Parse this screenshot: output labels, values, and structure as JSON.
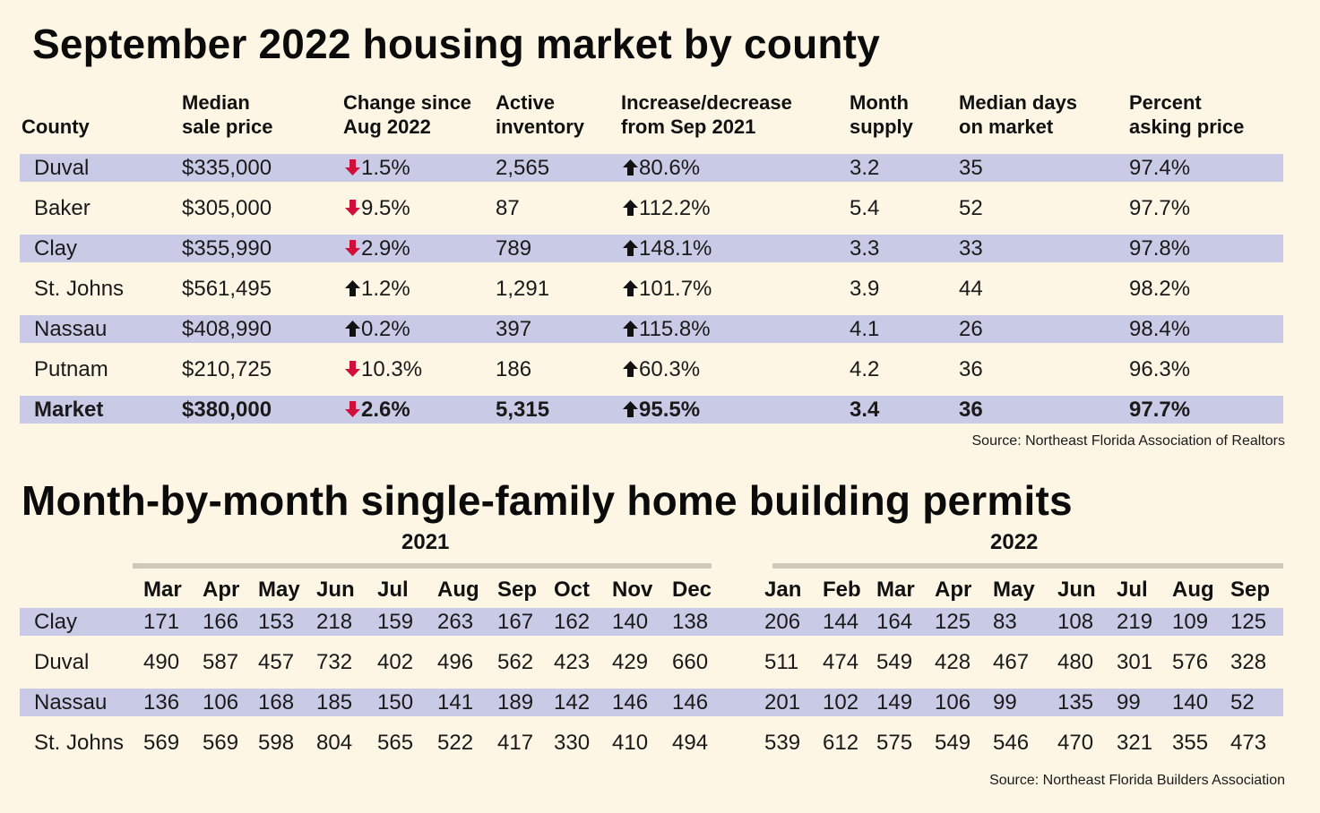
{
  "title1": "September 2022 housing market by county",
  "title2": "Month-by-month single-family home building permits",
  "colors": {
    "background": "#fdf6e4",
    "band": "#c9cbe6",
    "down_arrow": "#d0103a",
    "up_arrow": "#111111"
  },
  "housing": {
    "headers": [
      "County",
      "Median\nsale price",
      "Change since\nAug 2022",
      "Active\ninventory",
      "Increase/decrease\nfrom Sep 2021",
      "Month\nsupply",
      "Median days\non market",
      "Percent\nasking price"
    ],
    "rows": [
      {
        "county": "Duval",
        "price": "$335,000",
        "change_dir": "down",
        "change": "1.5%",
        "inventory": "2,565",
        "yoy_dir": "up",
        "yoy": "80.6%",
        "supply": "3.2",
        "days": "35",
        "asking": "97.4%"
      },
      {
        "county": "Baker",
        "price": "$305,000",
        "change_dir": "down",
        "change": "9.5%",
        "inventory": "87",
        "yoy_dir": "up",
        "yoy": "112.2%",
        "supply": "5.4",
        "days": "52",
        "asking": "97.7%"
      },
      {
        "county": "Clay",
        "price": "$355,990",
        "change_dir": "down",
        "change": "2.9%",
        "inventory": "789",
        "yoy_dir": "up",
        "yoy": "148.1%",
        "supply": "3.3",
        "days": "33",
        "asking": "97.8%"
      },
      {
        "county": "St. Johns",
        "price": "$561,495",
        "change_dir": "up",
        "change": "1.2%",
        "inventory": "1,291",
        "yoy_dir": "up",
        "yoy": "101.7%",
        "supply": "3.9",
        "days": "44",
        "asking": "98.2%"
      },
      {
        "county": "Nassau",
        "price": "$408,990",
        "change_dir": "up",
        "change": "0.2%",
        "inventory": "397",
        "yoy_dir": "up",
        "yoy": "115.8%",
        "supply": "4.1",
        "days": "26",
        "asking": "98.4%"
      },
      {
        "county": "Putnam",
        "price": "$210,725",
        "change_dir": "down",
        "change": "10.3%",
        "inventory": "186",
        "yoy_dir": "up",
        "yoy": "60.3%",
        "supply": "4.2",
        "days": "36",
        "asking": "96.3%"
      },
      {
        "county": "Market",
        "price": "$380,000",
        "change_dir": "down",
        "change": "2.6%",
        "inventory": "5,315",
        "yoy_dir": "up",
        "yoy": "95.5%",
        "supply": "3.4",
        "days": "36",
        "asking": "97.7%",
        "bold": true
      }
    ],
    "source": "Source: Northeast Florida Association of Realtors"
  },
  "permits": {
    "year1": "2021",
    "year2": "2022",
    "months": [
      "Mar",
      "Apr",
      "May",
      "Jun",
      "Jul",
      "Aug",
      "Sep",
      "Oct",
      "Nov",
      "Dec",
      "Jan",
      "Feb",
      "Mar",
      "Apr",
      "May",
      "Jun",
      "Jul",
      "Aug",
      "Sep"
    ],
    "rows": [
      {
        "county": "Clay",
        "values": [
          "171",
          "166",
          "153",
          "218",
          "159",
          "263",
          "167",
          "162",
          "140",
          "138",
          "206",
          "144",
          "164",
          "125",
          "83",
          "108",
          "219",
          "109",
          "125"
        ]
      },
      {
        "county": "Duval",
        "values": [
          "490",
          "587",
          "457",
          "732",
          "402",
          "496",
          "562",
          "423",
          "429",
          "660",
          "511",
          "474",
          "549",
          "428",
          "467",
          "480",
          "301",
          "576",
          "328"
        ]
      },
      {
        "county": "Nassau",
        "values": [
          "136",
          "106",
          "168",
          "185",
          "150",
          "141",
          "189",
          "142",
          "146",
          "146",
          "201",
          "102",
          "149",
          "106",
          "99",
          "135",
          "99",
          "140",
          "52"
        ]
      },
      {
        "county": "St. Johns",
        "values": [
          "569",
          "569",
          "598",
          "804",
          "565",
          "522",
          "417",
          "330",
          "410",
          "494",
          "539",
          "612",
          "575",
          "549",
          "546",
          "470",
          "321",
          "355",
          "473"
        ]
      }
    ],
    "source": "Source: Northeast Florida Builders Association"
  },
  "chart_data": [
    {
      "type": "table",
      "title": "September 2022 housing market by county",
      "columns": [
        "County",
        "Median sale price",
        "Change since Aug 2022",
        "Active inventory",
        "Increase/decrease from Sep 2021",
        "Month supply",
        "Median days on market",
        "Percent asking price"
      ],
      "rows": [
        [
          "Duval",
          "$335,000",
          "-1.5%",
          "2,565",
          "+80.6%",
          "3.2",
          "35",
          "97.4%"
        ],
        [
          "Baker",
          "$305,000",
          "-9.5%",
          "87",
          "+112.2%",
          "5.4",
          "52",
          "97.7%"
        ],
        [
          "Clay",
          "$355,990",
          "-2.9%",
          "789",
          "+148.1%",
          "3.3",
          "33",
          "97.8%"
        ],
        [
          "St. Johns",
          "$561,495",
          "+1.2%",
          "1,291",
          "+101.7%",
          "3.9",
          "44",
          "98.2%"
        ],
        [
          "Nassau",
          "$408,990",
          "+0.2%",
          "397",
          "+115.8%",
          "4.1",
          "26",
          "98.4%"
        ],
        [
          "Putnam",
          "$210,725",
          "-10.3%",
          "186",
          "+60.3%",
          "4.2",
          "36",
          "96.3%"
        ],
        [
          "Market",
          "$380,000",
          "-2.6%",
          "5,315",
          "+95.5%",
          "3.4",
          "36",
          "97.7%"
        ]
      ]
    },
    {
      "type": "table",
      "title": "Month-by-month single-family home building permits",
      "columns": [
        "County",
        "Mar 2021",
        "Apr 2021",
        "May 2021",
        "Jun 2021",
        "Jul 2021",
        "Aug 2021",
        "Sep 2021",
        "Oct 2021",
        "Nov 2021",
        "Dec 2021",
        "Jan 2022",
        "Feb 2022",
        "Mar 2022",
        "Apr 2022",
        "May 2022",
        "Jun 2022",
        "Jul 2022",
        "Aug 2022",
        "Sep 2022"
      ],
      "rows": [
        [
          "Clay",
          171,
          166,
          153,
          218,
          159,
          263,
          167,
          162,
          140,
          138,
          206,
          144,
          164,
          125,
          83,
          108,
          219,
          109,
          125
        ],
        [
          "Duval",
          490,
          587,
          457,
          732,
          402,
          496,
          562,
          423,
          429,
          660,
          511,
          474,
          549,
          428,
          467,
          480,
          301,
          576,
          328
        ],
        [
          "Nassau",
          136,
          106,
          168,
          185,
          150,
          141,
          189,
          142,
          146,
          146,
          201,
          102,
          149,
          106,
          99,
          135,
          99,
          140,
          52
        ],
        [
          "St. Johns",
          569,
          569,
          598,
          804,
          565,
          522,
          417,
          330,
          410,
          494,
          539,
          612,
          575,
          549,
          546,
          470,
          321,
          355,
          473
        ]
      ]
    }
  ]
}
